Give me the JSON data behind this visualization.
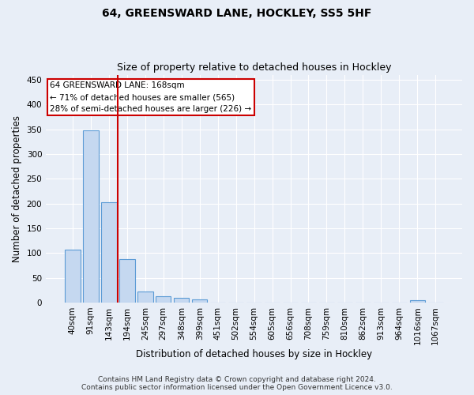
{
  "title_line1": "64, GREENSWARD LANE, HOCKLEY, SS5 5HF",
  "title_line2": "Size of property relative to detached houses in Hockley",
  "xlabel": "Distribution of detached houses by size in Hockley",
  "ylabel": "Number of detached properties",
  "categories": [
    "40sqm",
    "91sqm",
    "143sqm",
    "194sqm",
    "245sqm",
    "297sqm",
    "348sqm",
    "399sqm",
    "451sqm",
    "502sqm",
    "554sqm",
    "605sqm",
    "656sqm",
    "708sqm",
    "759sqm",
    "810sqm",
    "862sqm",
    "913sqm",
    "964sqm",
    "1016sqm",
    "1067sqm"
  ],
  "values": [
    107,
    348,
    202,
    88,
    22,
    13,
    9,
    6,
    0,
    0,
    0,
    0,
    0,
    0,
    0,
    0,
    0,
    0,
    0,
    4,
    0
  ],
  "bar_color": "#c5d8f0",
  "bar_edge_color": "#5b9bd5",
  "vline_x_index": 2.5,
  "vline_color": "#cc0000",
  "annotation_line1": "64 GREENSWARD LANE: 168sqm",
  "annotation_line2": "← 71% of detached houses are smaller (565)",
  "annotation_line3": "28% of semi-detached houses are larger (226) →",
  "annotation_box_color": "#ffffff",
  "annotation_box_edge": "#cc0000",
  "ylim": [
    0,
    460
  ],
  "yticks": [
    0,
    50,
    100,
    150,
    200,
    250,
    300,
    350,
    400,
    450
  ],
  "background_color": "#e8eef7",
  "plot_background": "#e8eef7",
  "footer_line1": "Contains HM Land Registry data © Crown copyright and database right 2024.",
  "footer_line2": "Contains public sector information licensed under the Open Government Licence v3.0.",
  "title_fontsize": 10,
  "subtitle_fontsize": 9,
  "axis_label_fontsize": 8.5,
  "tick_fontsize": 7.5,
  "annotation_fontsize": 7.5,
  "footer_fontsize": 6.5
}
